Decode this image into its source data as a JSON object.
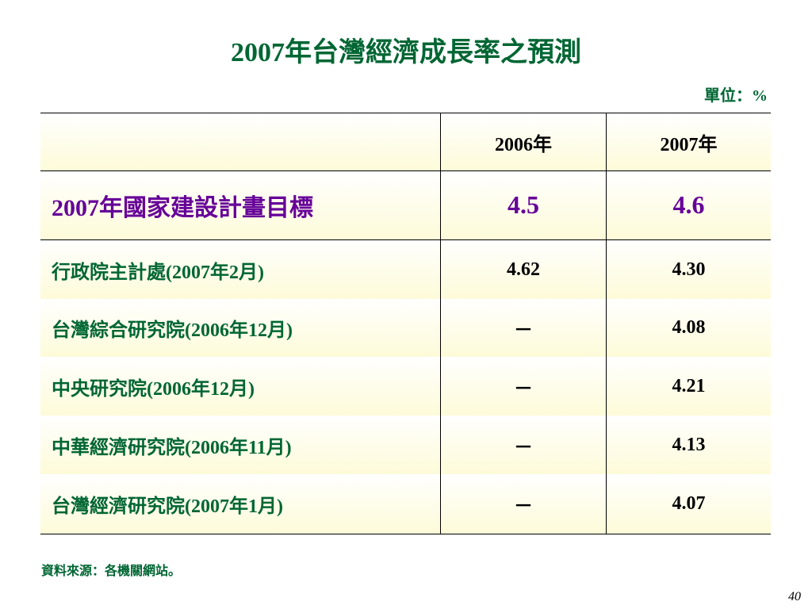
{
  "header": {
    "title": "2007年台灣經濟成長率之預測",
    "unit": "單位：%"
  },
  "table": {
    "columns": [
      "",
      "2006年",
      "2007年"
    ],
    "rows": [
      [
        "2007年國家建設計畫目標",
        "4.5",
        "4.6"
      ],
      [
        "行政院主計處(2007年2月)",
        "4.62",
        "4.30"
      ],
      [
        "台灣綜合研究院(2006年12月)",
        "－",
        "4.08"
      ],
      [
        "中央研究院(2006年12月)",
        "－",
        "4.21"
      ],
      [
        "中華經濟研究院(2006年11月)",
        "－",
        "4.13"
      ],
      [
        "台灣經濟研究院(2007年1月)",
        "－",
        "4.07"
      ]
    ]
  },
  "footer": {
    "source": "資料來源：各機關網站。",
    "page": "40"
  }
}
